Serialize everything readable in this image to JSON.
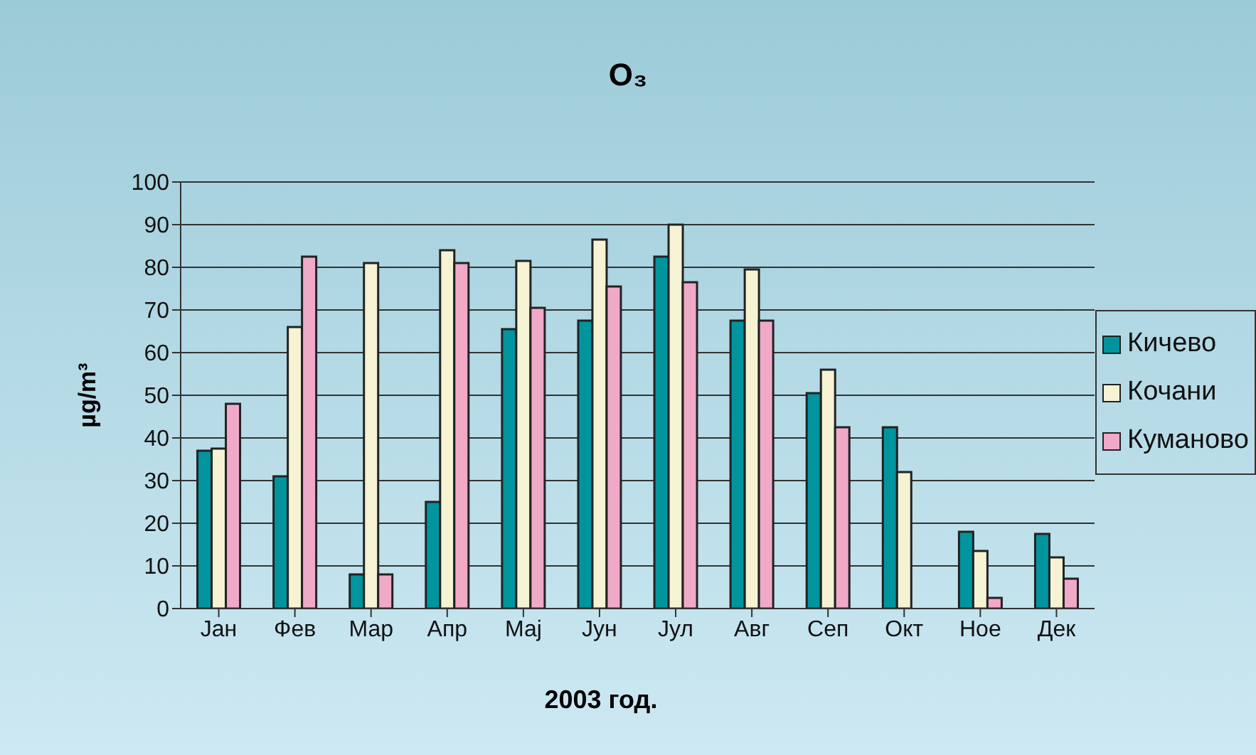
{
  "chart_data": {
    "type": "bar",
    "title": "O₃",
    "xlabel": "2003 год.",
    "ylabel": "µg/m³",
    "categories": [
      "Јан",
      "Фев",
      "Мар",
      "Апр",
      "Мај",
      "Јун",
      "Јул",
      "Авг",
      "Сеп",
      "Окт",
      "Ное",
      "Дек"
    ],
    "series": [
      {
        "name": "Кичево",
        "color": "#00959e",
        "values": [
          37,
          31,
          8,
          25,
          65.5,
          67.5,
          82.5,
          67.5,
          50.5,
          42.5,
          18,
          17.5
        ]
      },
      {
        "name": "Кочани",
        "color": "#f5f3d3",
        "values": [
          37.5,
          66,
          81,
          84,
          81.5,
          86.5,
          90,
          79.5,
          56,
          32,
          13.5,
          12
        ]
      },
      {
        "name": "Куманово",
        "color": "#f0aac8",
        "values": [
          48,
          82.5,
          8,
          81,
          70.5,
          75.5,
          76.5,
          67.5,
          42.5,
          null,
          2.5,
          7
        ]
      }
    ],
    "ylim": [
      0,
      100
    ],
    "yticks": [
      0,
      10,
      20,
      30,
      40,
      50,
      60,
      70,
      80,
      90,
      100
    ],
    "grid": "y",
    "legend": "right"
  }
}
